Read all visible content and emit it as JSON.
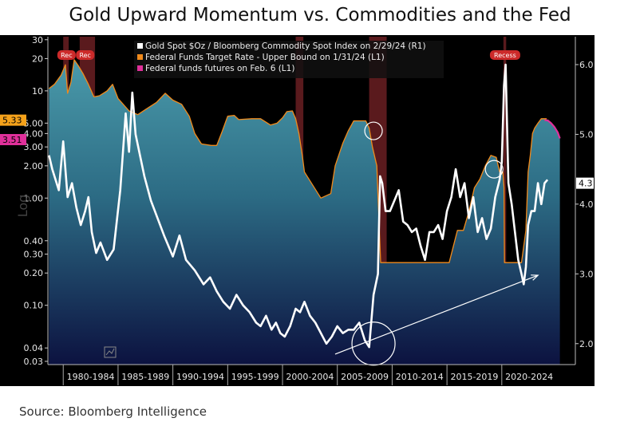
{
  "title": "Gold Upward Momentum vs. Commodities and the Fed",
  "source": "Source: Bloomberg Intelligence",
  "chart_data": {
    "type": "line",
    "title": "Gold Upward Momentum vs. Commodities and the Fed",
    "left_axis": {
      "scale": "log",
      "label": "Log",
      "ticks": [
        "30",
        "20",
        "10",
        "5.00",
        "4.00",
        "3.00",
        "2.00",
        "1.00",
        "0.40",
        "0.30",
        "0.20",
        "0.10",
        "0.04",
        "0.03"
      ],
      "range": [
        0.028,
        32
      ]
    },
    "right_axis": {
      "scale": "linear",
      "ticks": [
        "6.0",
        "5.0",
        "4.0",
        "3.0",
        "2.0"
      ],
      "range": [
        1.7,
        6.4
      ]
    },
    "x_axis": {
      "range": [
        1978.6,
        2025.4
      ],
      "tick_labels": [
        "1980-1984",
        "1985-1989",
        "1990-1994",
        "1995-1999",
        "2000-2004",
        "2005-2009",
        "2010-2014",
        "2015-2019",
        "2020-2024"
      ]
    },
    "legend": {
      "position": "top-center",
      "entries": [
        {
          "label": "Gold Spot $Oz / Bloomberg Commodity Spot Index on 2/29/24 (R1)",
          "color": "#ffffff"
        },
        {
          "label": "Federal Funds Target Rate - Upper Bound on 1/31/24 (L1)",
          "color": "#f08a1c"
        },
        {
          "label": "Federal funds futures on Feb. 6 (L1)",
          "color": "#e0309a"
        }
      ]
    },
    "value_labels": [
      {
        "text": "5.33",
        "axis": "left",
        "value": 5.33,
        "color": "#f5a21b"
      },
      {
        "text": "3.51",
        "axis": "left",
        "value": 3.51,
        "color": "#e0309a"
      },
      {
        "text": "4.3",
        "axis": "right",
        "value": 4.3,
        "color": "#ffffff"
      }
    ],
    "recession_bands": [
      [
        1980.0,
        1980.5
      ],
      [
        1981.5,
        1982.9
      ],
      [
        2001.2,
        2001.9
      ],
      [
        2007.9,
        2009.5
      ],
      [
        2020.15,
        2020.4
      ]
    ],
    "recession_markers": [
      {
        "x": 1980.3,
        "text": "Rec"
      },
      {
        "x": 1982.0,
        "text": "Rec"
      },
      {
        "x": 2020.3,
        "text": "Recess"
      }
    ],
    "series": [
      {
        "name": "Federal Funds Target Rate - Upper Bound on 1/31/24 (L1)",
        "color": "#f08a1c",
        "axis": "left",
        "x": [
          1978.7,
          1979.2,
          1979.8,
          1980.2,
          1980.4,
          1980.7,
          1981.0,
          1981.4,
          1981.8,
          1982.3,
          1982.8,
          1983.3,
          1984.0,
          1984.5,
          1985.0,
          1986.0,
          1986.8,
          1987.5,
          1988.5,
          1989.3,
          1990.0,
          1990.8,
          1991.5,
          1992.0,
          1992.6,
          1993.5,
          1994.0,
          1994.5,
          1995.0,
          1995.6,
          1996.0,
          1997.2,
          1998.0,
          1998.9,
          1999.5,
          2000.0,
          2000.4,
          2000.9,
          2001.2,
          2001.5,
          2001.8,
          2002.0,
          2002.9,
          2003.5,
          2004.4,
          2004.8,
          2005.5,
          2006.0,
          2006.5,
          2007.0,
          2007.6,
          2007.9,
          2008.2,
          2008.6,
          2008.95,
          2009.5,
          2010.5,
          2011.5,
          2012.5,
          2013.5,
          2014.5,
          2015.2,
          2015.95,
          2016.5,
          2017.0,
          2017.5,
          2018.0,
          2018.5,
          2019.0,
          2019.5,
          2019.8,
          2020.1,
          2020.2,
          2020.25,
          2021.0,
          2021.8,
          2022.2,
          2022.4,
          2022.6,
          2022.8,
          2023.0,
          2023.3,
          2023.6,
          2024.1
        ],
        "values": [
          10.5,
          11.5,
          14.0,
          17.5,
          9.5,
          12.0,
          19.5,
          17.0,
          14.5,
          11.5,
          8.8,
          9.0,
          10.0,
          11.5,
          8.5,
          6.5,
          6.0,
          6.7,
          7.8,
          9.5,
          8.2,
          7.5,
          5.8,
          4.0,
          3.2,
          3.1,
          3.1,
          4.2,
          5.8,
          5.9,
          5.4,
          5.5,
          5.5,
          4.8,
          5.0,
          5.6,
          6.4,
          6.5,
          5.5,
          4.0,
          2.5,
          1.75,
          1.25,
          1.0,
          1.1,
          2.0,
          3.25,
          4.25,
          5.25,
          5.25,
          5.25,
          4.5,
          3.0,
          2.0,
          0.25,
          0.25,
          0.25,
          0.25,
          0.25,
          0.25,
          0.25,
          0.25,
          0.5,
          0.5,
          0.75,
          1.25,
          1.5,
          2.0,
          2.5,
          2.4,
          1.75,
          1.75,
          1.25,
          0.25,
          0.25,
          0.25,
          0.5,
          1.75,
          2.5,
          4.0,
          4.5,
          5.0,
          5.5,
          5.5
        ]
      },
      {
        "name": "Federal funds futures on Feb. 6 (L1)",
        "color": "#e0309a",
        "axis": "left",
        "x": [
          2023.9,
          2024.2,
          2024.5,
          2024.8,
          2025.1,
          2025.3
        ],
        "values": [
          5.33,
          5.3,
          5.0,
          4.6,
          4.1,
          3.6
        ]
      },
      {
        "name": "Gold Spot $Oz / Bloomberg Commodity Spot Index on 2/29/24 (R1)",
        "color": "#ffffff",
        "axis": "right",
        "x": [
          1978.7,
          1979.0,
          1979.6,
          1980.0,
          1980.4,
          1980.8,
          1981.2,
          1981.6,
          1982.0,
          1982.3,
          1982.6,
          1983.0,
          1983.4,
          1984.0,
          1984.6,
          1985.2,
          1985.7,
          1986.0,
          1986.3,
          1986.6,
          1987.0,
          1987.4,
          1988.0,
          1988.6,
          1989.2,
          1990.0,
          1990.6,
          1991.2,
          1992.0,
          1992.8,
          1993.4,
          1994.0,
          1994.6,
          1995.2,
          1995.8,
          1996.4,
          1997.0,
          1997.6,
          1998.0,
          1998.5,
          1999.0,
          1999.4,
          1999.8,
          2000.2,
          2000.7,
          2001.2,
          2001.6,
          2002.0,
          2002.5,
          2003.0,
          2003.5,
          2004.0,
          2004.5,
          2005.0,
          2005.5,
          2006.0,
          2006.5,
          2007.0,
          2007.5,
          2007.9,
          2008.3,
          2008.7,
          2008.9,
          2009.1,
          2009.4,
          2009.8,
          2010.2,
          2010.6,
          2011.0,
          2011.4,
          2011.8,
          2012.2,
          2012.6,
          2013.0,
          2013.4,
          2013.8,
          2014.2,
          2014.6,
          2015.0,
          2015.4,
          2015.8,
          2016.2,
          2016.6,
          2017.0,
          2017.4,
          2017.8,
          2018.2,
          2018.6,
          2019.0,
          2019.4,
          2019.8,
          2020.0,
          2020.2,
          2020.35,
          2020.6,
          2020.9,
          2021.2,
          2021.5,
          2021.8,
          2022.0,
          2022.2,
          2022.4,
          2022.7,
          2023.0,
          2023.3,
          2023.6,
          2023.9,
          2024.17
        ],
        "values": [
          4.7,
          4.5,
          4.2,
          4.9,
          4.1,
          4.3,
          3.95,
          3.7,
          3.9,
          4.1,
          3.6,
          3.3,
          3.45,
          3.2,
          3.35,
          4.2,
          5.3,
          4.75,
          5.6,
          5.0,
          4.7,
          4.4,
          4.05,
          3.8,
          3.55,
          3.25,
          3.55,
          3.2,
          3.05,
          2.85,
          2.95,
          2.75,
          2.6,
          2.5,
          2.7,
          2.55,
          2.45,
          2.3,
          2.25,
          2.4,
          2.2,
          2.3,
          2.15,
          2.1,
          2.25,
          2.5,
          2.45,
          2.6,
          2.4,
          2.3,
          2.15,
          2.0,
          2.1,
          2.25,
          2.15,
          2.2,
          2.2,
          2.3,
          2.05,
          1.95,
          2.7,
          3.0,
          4.4,
          4.3,
          3.9,
          3.9,
          4.05,
          4.2,
          3.75,
          3.7,
          3.6,
          3.65,
          3.4,
          3.2,
          3.6,
          3.6,
          3.7,
          3.5,
          3.9,
          4.1,
          4.5,
          4.1,
          4.3,
          3.8,
          4.1,
          3.6,
          3.8,
          3.5,
          3.65,
          4.1,
          4.35,
          4.6,
          5.7,
          6.0,
          4.3,
          4.0,
          3.6,
          3.2,
          3.0,
          2.85,
          3.1,
          3.7,
          3.9,
          3.9,
          4.3,
          4.0,
          4.3,
          4.35
        ]
      }
    ],
    "annotations": {
      "circles": [
        {
          "x": 2008.3,
          "y_right": 5.05,
          "r": "small"
        },
        {
          "x": 2019.3,
          "y_right": 4.5,
          "r": "small"
        },
        {
          "x": 2008.3,
          "y_right": 2.0,
          "r": "large"
        }
      ],
      "trend_arrow": {
        "from": {
          "x": 2004.8,
          "y_right": 1.85
        },
        "to": {
          "x": 2023.3,
          "y_right": 2.98
        }
      }
    }
  }
}
